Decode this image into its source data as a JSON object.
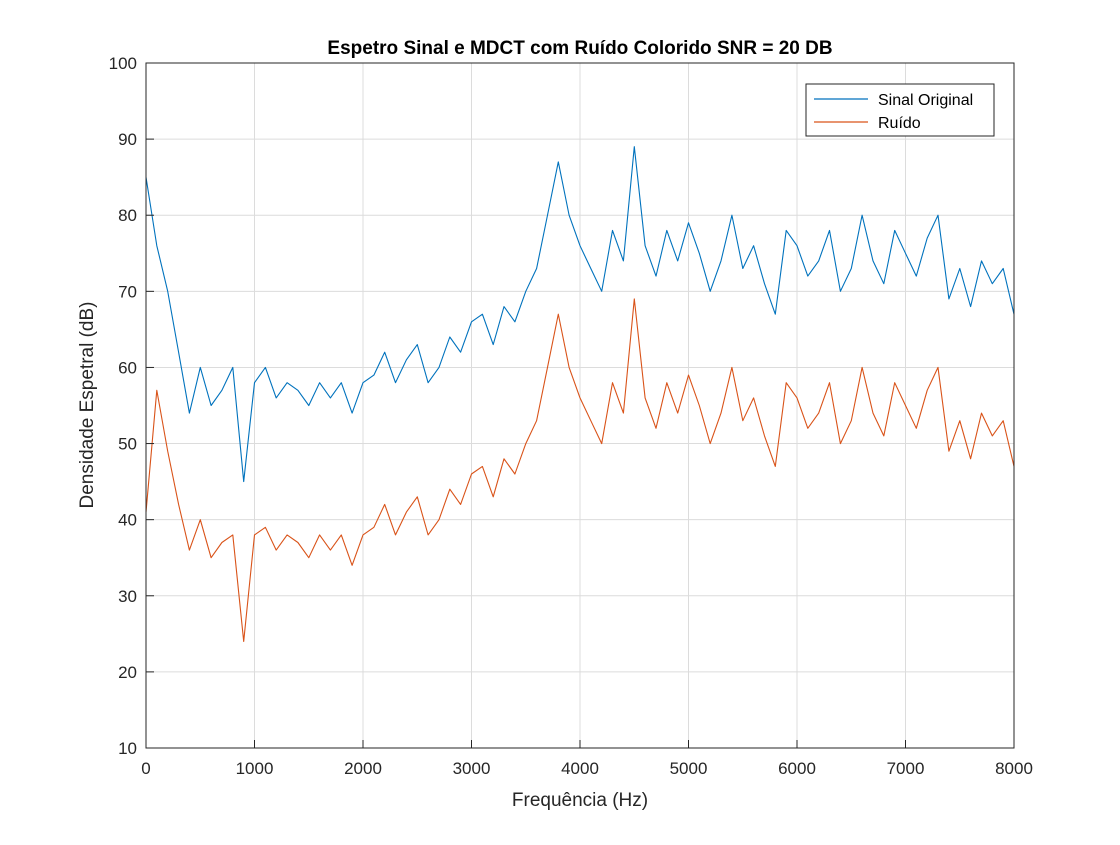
{
  "chart_data": {
    "type": "line",
    "title": "Espetro Sinal e MDCT com Ruído Colorido SNR = 20 DB",
    "xlabel": "Frequência (Hz)",
    "ylabel": "Densidade Espetral (dB)",
    "xlim": [
      0,
      8000
    ],
    "ylim": [
      10,
      100
    ],
    "xticks": [
      "0",
      "1000",
      "2000",
      "3000",
      "4000",
      "5000",
      "6000",
      "7000",
      "8000"
    ],
    "yticks": [
      "10",
      "20",
      "30",
      "40",
      "50",
      "60",
      "70",
      "80",
      "90",
      "100"
    ],
    "grid": true,
    "legend_position": "top-right",
    "colors": {
      "signal": "#0072BD",
      "noise": "#D95319",
      "grid": "#dcdcdc",
      "axis": "#262626"
    },
    "x": [
      0,
      100,
      200,
      300,
      400,
      500,
      600,
      700,
      800,
      900,
      1000,
      1100,
      1200,
      1300,
      1400,
      1500,
      1600,
      1700,
      1800,
      1900,
      2000,
      2100,
      2200,
      2300,
      2400,
      2500,
      2600,
      2700,
      2800,
      2900,
      3000,
      3100,
      3200,
      3300,
      3400,
      3500,
      3600,
      3700,
      3800,
      3900,
      4000,
      4100,
      4200,
      4300,
      4400,
      4500,
      4600,
      4700,
      4800,
      4900,
      5000,
      5100,
      5200,
      5300,
      5400,
      5500,
      5600,
      5700,
      5800,
      5900,
      6000,
      6100,
      6200,
      6300,
      6400,
      6500,
      6600,
      6700,
      6800,
      6900,
      7000,
      7100,
      7200,
      7300,
      7400,
      7500,
      7600,
      7700,
      7800,
      7900,
      8000
    ],
    "series": [
      {
        "name": "Sinal Original",
        "values": [
          85,
          76,
          70,
          62,
          54,
          60,
          55,
          57,
          60,
          45,
          58,
          60,
          56,
          58,
          57,
          55,
          58,
          56,
          58,
          54,
          58,
          59,
          62,
          58,
          61,
          63,
          58,
          60,
          64,
          62,
          66,
          67,
          63,
          68,
          66,
          70,
          73,
          80,
          87,
          80,
          76,
          73,
          70,
          78,
          74,
          89,
          76,
          72,
          78,
          74,
          79,
          75,
          70,
          74,
          80,
          73,
          76,
          71,
          67,
          78,
          76,
          72,
          74,
          78,
          70,
          73,
          80,
          74,
          71,
          78,
          75,
          72,
          77,
          80,
          69,
          73,
          68,
          74,
          71,
          73,
          67
        ]
      },
      {
        "name": "Ruído",
        "values": [
          41,
          57,
          49,
          42,
          36,
          40,
          35,
          37,
          38,
          24,
          38,
          39,
          36,
          38,
          37,
          35,
          38,
          36,
          38,
          34,
          38,
          39,
          42,
          38,
          41,
          43,
          38,
          40,
          44,
          42,
          46,
          47,
          43,
          48,
          46,
          50,
          53,
          60,
          67,
          60,
          56,
          53,
          50,
          58,
          54,
          69,
          56,
          52,
          58,
          54,
          59,
          55,
          50,
          54,
          60,
          53,
          56,
          51,
          47,
          58,
          56,
          52,
          54,
          58,
          50,
          53,
          60,
          54,
          51,
          58,
          55,
          52,
          57,
          60,
          49,
          53,
          48,
          54,
          51,
          53,
          47
        ]
      }
    ]
  }
}
